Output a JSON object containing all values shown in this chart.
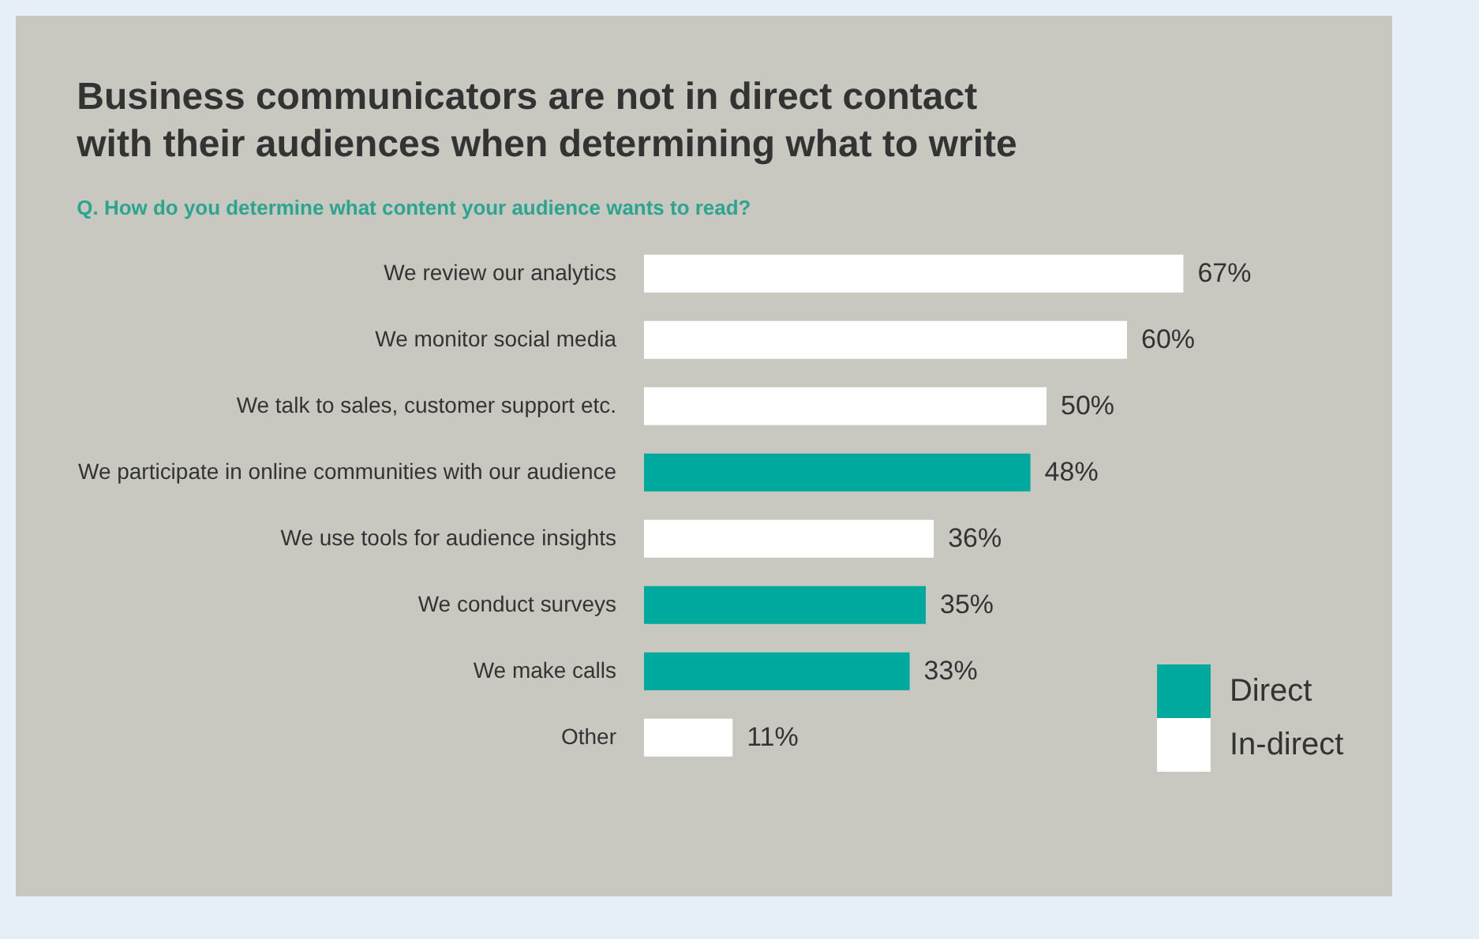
{
  "chart_data": {
    "type": "bar",
    "orientation": "horizontal",
    "title": "Business communicators are not in direct contact with their audiences when determining what to write",
    "subtitle": "Q. How do you determine what content your audience wants to read?",
    "categories": [
      "We review our analytics",
      "We monitor social media",
      "We talk to sales, customer support etc.",
      "We participate in online communities with our audience",
      "We use tools for audience insights",
      "We conduct surveys",
      "We make calls",
      "Other"
    ],
    "series": [
      {
        "name": "Direct",
        "color": "#00a99d",
        "values": [
          null,
          null,
          null,
          48,
          null,
          35,
          33,
          null
        ],
        "value_labels": [
          null,
          null,
          null,
          "48%",
          null,
          "35%",
          "33%",
          null
        ]
      },
      {
        "name": "In-direct",
        "color": "#ffffff",
        "values": [
          67,
          60,
          50,
          null,
          36,
          null,
          null,
          11
        ],
        "value_labels": [
          "67%",
          "60%",
          "50%",
          null,
          "36%",
          null,
          null,
          "11%"
        ]
      }
    ],
    "legend": "bottom right"
  }
}
